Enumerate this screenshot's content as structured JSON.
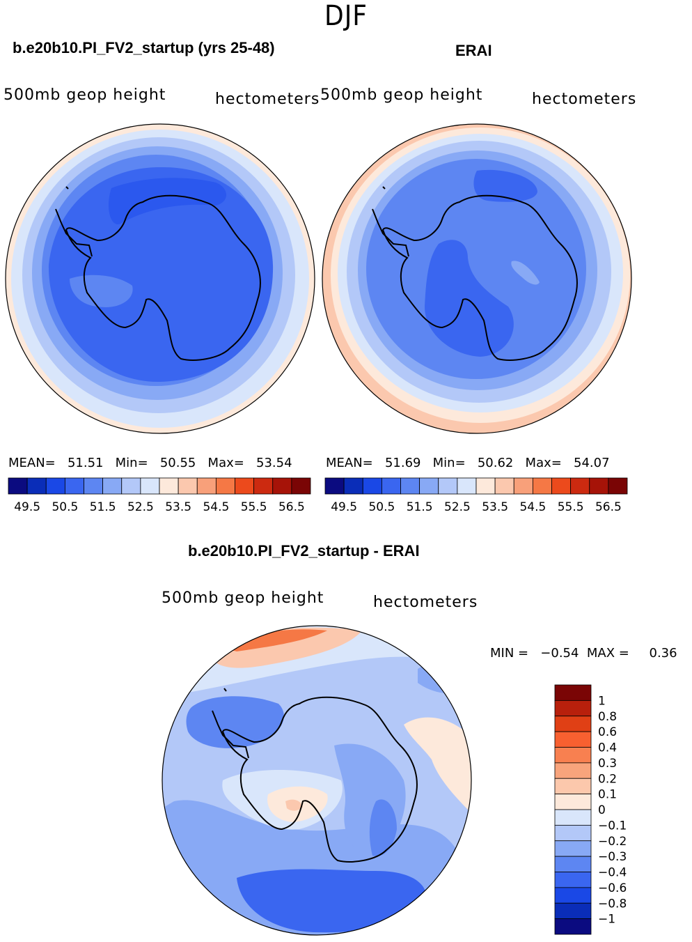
{
  "figure": {
    "season": "DJF"
  },
  "panels": [
    {
      "id": "model",
      "title": "b.e20b10.PI_FV2_startup (yrs 25-48)",
      "variable": "500mb geop height",
      "units": "hectometers",
      "stats": {
        "mean_label": "MEAN=",
        "mean": "51.51",
        "min_label": "Min=",
        "min": "50.55",
        "max_label": "Max=",
        "max": "53.54"
      }
    },
    {
      "id": "obs",
      "title": "ERAI",
      "variable": "500mb geop height",
      "units": "hectometers",
      "stats": {
        "mean_label": "MEAN=",
        "mean": "51.69",
        "min_label": "Min=",
        "min": "50.62",
        "max_label": "Max=",
        "max": "54.07"
      }
    },
    {
      "id": "diff",
      "title": "b.e20b10.PI_FV2_startup - ERAI",
      "variable": "500mb geop height",
      "units": "hectometers",
      "stats": {
        "min_label": "MIN =",
        "min": "−0.54",
        "max_label": "MAX =",
        "max": "0.36"
      }
    }
  ],
  "chart_data": [
    {
      "type": "heatmap",
      "projection": "south-polar-stereographic",
      "title": "b.e20b10.PI_FV2_startup (yrs 25-48)",
      "variable": "500mb geop height",
      "units": "hectometers",
      "mean": 51.51,
      "min": 50.55,
      "max": 53.54,
      "colorbar": {
        "orientation": "horizontal",
        "tick_labels": [
          "49.5",
          "50.5",
          "51.5",
          "52.5",
          "53.5",
          "54.5",
          "55.5",
          "56.5"
        ],
        "colors": [
          "#0b0b80",
          "#0a2db8",
          "#1a48e6",
          "#3a66f0",
          "#5d86f2",
          "#88a9f5",
          "#b3c8f8",
          "#d9e6fb",
          "#fde9db",
          "#fbc8ae",
          "#f8a07a",
          "#f57845",
          "#ec4a1c",
          "#cc2a10",
          "#a61308",
          "#7a0505"
        ]
      }
    },
    {
      "type": "heatmap",
      "projection": "south-polar-stereographic",
      "title": "ERAI",
      "variable": "500mb geop height",
      "units": "hectometers",
      "mean": 51.69,
      "min": 50.62,
      "max": 54.07,
      "colorbar": {
        "orientation": "horizontal",
        "tick_labels": [
          "49.5",
          "50.5",
          "51.5",
          "52.5",
          "53.5",
          "54.5",
          "55.5",
          "56.5"
        ],
        "colors": [
          "#0b0b80",
          "#0a2db8",
          "#1a48e6",
          "#3a66f0",
          "#5d86f2",
          "#88a9f5",
          "#b3c8f8",
          "#d9e6fb",
          "#fde9db",
          "#fbc8ae",
          "#f8a07a",
          "#f57845",
          "#ec4a1c",
          "#cc2a10",
          "#a61308",
          "#7a0505"
        ]
      }
    },
    {
      "type": "heatmap",
      "projection": "south-polar-stereographic",
      "title": "b.e20b10.PI_FV2_startup - ERAI",
      "variable": "500mb geop height",
      "units": "hectometers",
      "min": -0.54,
      "max": 0.36,
      "colorbar": {
        "orientation": "vertical",
        "tick_labels": [
          "1",
          "0.8",
          "0.6",
          "0.4",
          "0.3",
          "0.2",
          "0.1",
          "0",
          "−0.1",
          "−0.2",
          "−0.3",
          "−0.4",
          "−0.6",
          "−0.8",
          "−1"
        ],
        "colors": [
          "#7a0505",
          "#b8200c",
          "#e04015",
          "#f86030",
          "#f88050",
          "#f8a47c",
          "#fcc8ac",
          "#fde9db",
          "#d9e6fb",
          "#b3c8f8",
          "#88a9f5",
          "#5d86f2",
          "#3a66f0",
          "#1a48e6",
          "#0a2db8",
          "#0b0b80"
        ]
      }
    }
  ]
}
